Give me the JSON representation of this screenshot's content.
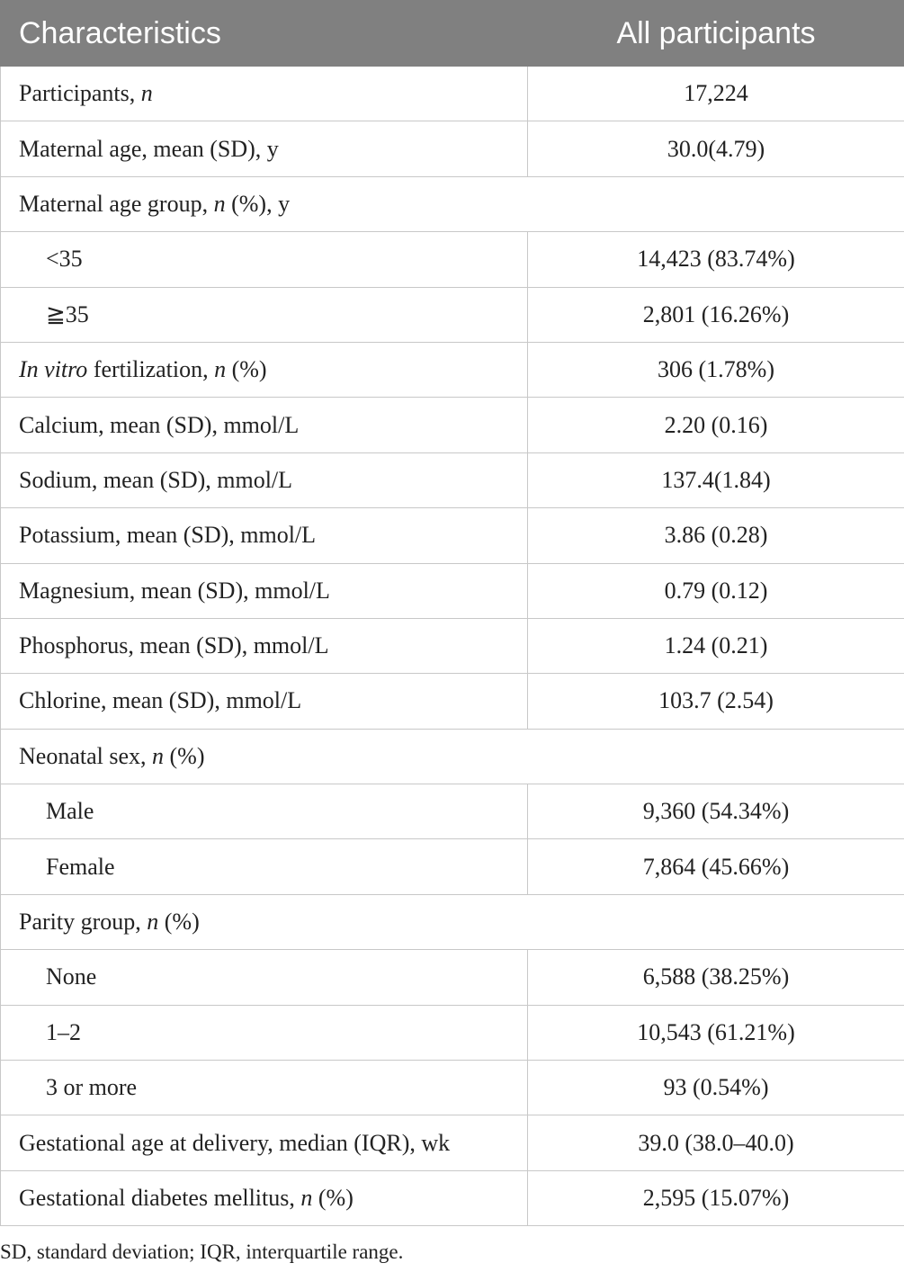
{
  "table": {
    "header": [
      "Characteristics",
      "All participants"
    ],
    "rows": [
      {
        "label": [
          "Participants, ",
          {
            "text": "n",
            "italic": true
          }
        ],
        "value": "17,224"
      },
      {
        "label": [
          "Maternal age, mean (SD), y"
        ],
        "value": "30.0(4.79)"
      },
      {
        "label": [
          "Maternal age group, ",
          {
            "text": "n",
            "italic": true
          },
          " (%), y"
        ]
      },
      {
        "label": [
          "<35"
        ],
        "value": "14,423 (83.74%)",
        "indent": true
      },
      {
        "label": [
          "≧35"
        ],
        "value": "2,801 (16.26%)",
        "indent": true
      },
      {
        "label": [
          {
            "text": "In vitro",
            "italic": true
          },
          " fertilization, ",
          {
            "text": "n",
            "italic": true
          },
          " (%)"
        ],
        "value": "306 (1.78%)"
      },
      {
        "label": [
          "Calcium, mean (SD), mmol/L"
        ],
        "value": "2.20 (0.16)"
      },
      {
        "label": [
          "Sodium, mean (SD), mmol/L"
        ],
        "value": "137.4(1.84)"
      },
      {
        "label": [
          "Potassium, mean (SD), mmol/L"
        ],
        "value": "3.86 (0.28)"
      },
      {
        "label": [
          "Magnesium, mean (SD), mmol/L"
        ],
        "value": "0.79 (0.12)"
      },
      {
        "label": [
          "Phosphorus, mean (SD), mmol/L"
        ],
        "value": "1.24 (0.21)"
      },
      {
        "label": [
          "Chlorine, mean (SD), mmol/L"
        ],
        "value": "103.7 (2.54)"
      },
      {
        "label": [
          "Neonatal sex, ",
          {
            "text": "n",
            "italic": true
          },
          " (%)"
        ]
      },
      {
        "label": [
          "Male"
        ],
        "value": "9,360 (54.34%)",
        "indent": true
      },
      {
        "label": [
          "Female"
        ],
        "value": "7,864 (45.66%)",
        "indent": true
      },
      {
        "label": [
          "Parity group, ",
          {
            "text": "n",
            "italic": true
          },
          " (%)"
        ]
      },
      {
        "label": [
          "None"
        ],
        "value": "6,588 (38.25%)",
        "indent": true
      },
      {
        "label": [
          "1–2"
        ],
        "value": "10,543 (61.21%)",
        "indent": true
      },
      {
        "label": [
          "3 or more"
        ],
        "value": "93 (0.54%)",
        "indent": true
      },
      {
        "label": [
          "Gestational age at delivery, median (IQR), wk"
        ],
        "value": "39.0 (38.0–40.0)"
      },
      {
        "label": [
          "Gestational diabetes mellitus, ",
          {
            "text": "n",
            "italic": true
          },
          " (%)"
        ],
        "value": "2,595 (15.07%)"
      }
    ]
  },
  "footnote": "SD, standard deviation; IQR, interquartile range."
}
